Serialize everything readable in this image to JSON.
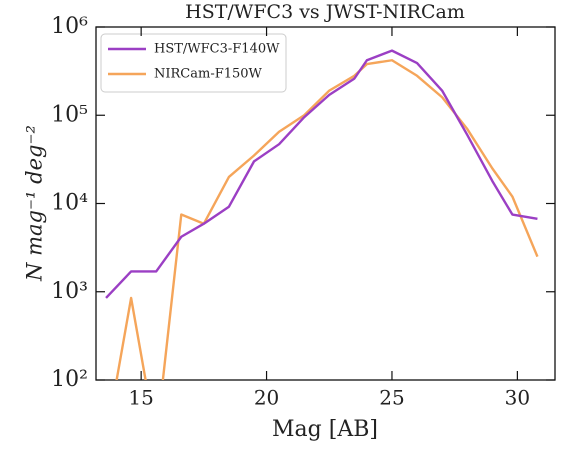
{
  "chart_data": {
    "type": "line",
    "title": "HST/WFC3 vs JWST-NIRCam",
    "x_label": "Mag [AB]",
    "y_label": "N mag⁻¹ deg⁻²",
    "x": [
      13.6,
      14.6,
      15.6,
      16.6,
      17.5,
      18.5,
      19.5,
      20.5,
      21.5,
      22.5,
      23.5,
      24.0,
      25.0,
      26.0,
      27.0,
      28.0,
      29.0,
      29.8,
      30.8
    ],
    "series": [
      {
        "name": "HST/WFC3-F140W",
        "color": "#9b3fc4",
        "values": [
          850,
          1700,
          1700,
          4200,
          5900,
          9200,
          30000,
          47000,
          95000,
          170000,
          260000,
          420000,
          540000,
          390000,
          190000,
          60000,
          18000,
          7500,
          6700
        ]
      },
      {
        "name": "NIRCam-F150W",
        "color": "#f5a55a",
        "values": [
          0,
          850,
          0,
          7500,
          5900,
          20000,
          35000,
          65000,
          100000,
          190000,
          280000,
          380000,
          420000,
          280000,
          160000,
          70000,
          25000,
          12000,
          2500
        ]
      }
    ],
    "xlim": [
      13.2,
      31.5
    ],
    "xticks": [
      15,
      20,
      25,
      30
    ],
    "ylim": [
      100,
      1000000
    ],
    "yticks": [
      {
        "value": 100,
        "label": "10²"
      },
      {
        "value": 1000,
        "label": "10³"
      },
      {
        "value": 10000,
        "label": "10⁴"
      },
      {
        "value": 100000,
        "label": "10⁵"
      },
      {
        "value": 1000000,
        "label": "10⁶"
      }
    ],
    "y_log": true,
    "legend": "upper left"
  }
}
